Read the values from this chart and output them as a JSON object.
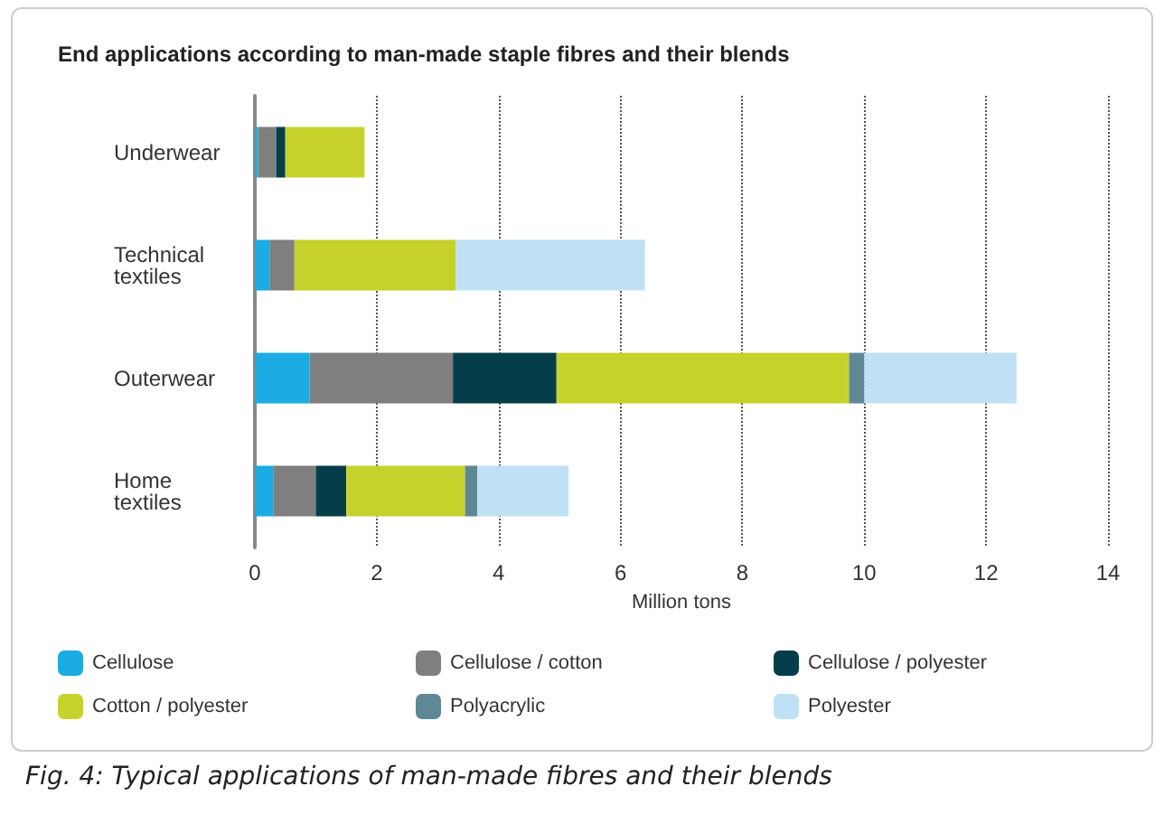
{
  "chart_data": {
    "type": "bar",
    "orientation": "horizontal",
    "stacked": true,
    "title": "End applications according to man-made staple fibres and their blends",
    "xlabel": "Million tons",
    "categories": [
      "Underwear",
      "Technical textiles",
      "Outerwear",
      "Home textiles"
    ],
    "series": [
      {
        "name": "Cellulose",
        "color": "#1aace3",
        "values": [
          0.05,
          0.25,
          0.9,
          0.3
        ]
      },
      {
        "name": "Cellulose / cotton",
        "color": "#7f7f7f",
        "values": [
          0.3,
          0.4,
          2.35,
          0.7
        ]
      },
      {
        "name": "Cellulose / polyester",
        "color": "#043e4b",
        "values": [
          0.15,
          0,
          1.7,
          0.5
        ]
      },
      {
        "name": "Cotton / polyester",
        "color": "#c6d22c",
        "values": [
          1.3,
          2.65,
          4.8,
          1.95
        ]
      },
      {
        "name": "Polyacrylic",
        "color": "#5f8895",
        "values": [
          0,
          0,
          0.25,
          0.2
        ]
      },
      {
        "name": "Polyester",
        "color": "#bfe0f5",
        "values": [
          0,
          3.1,
          2.5,
          1.5
        ]
      }
    ],
    "xlim": [
      0,
      14
    ],
    "xticks": [
      0,
      2,
      4,
      6,
      8,
      10,
      12,
      14
    ],
    "grid": "x",
    "legend": "bottom",
    "annotations": [
      "Fig. 4: Typical applications of man-made fibres and their blends"
    ]
  }
}
